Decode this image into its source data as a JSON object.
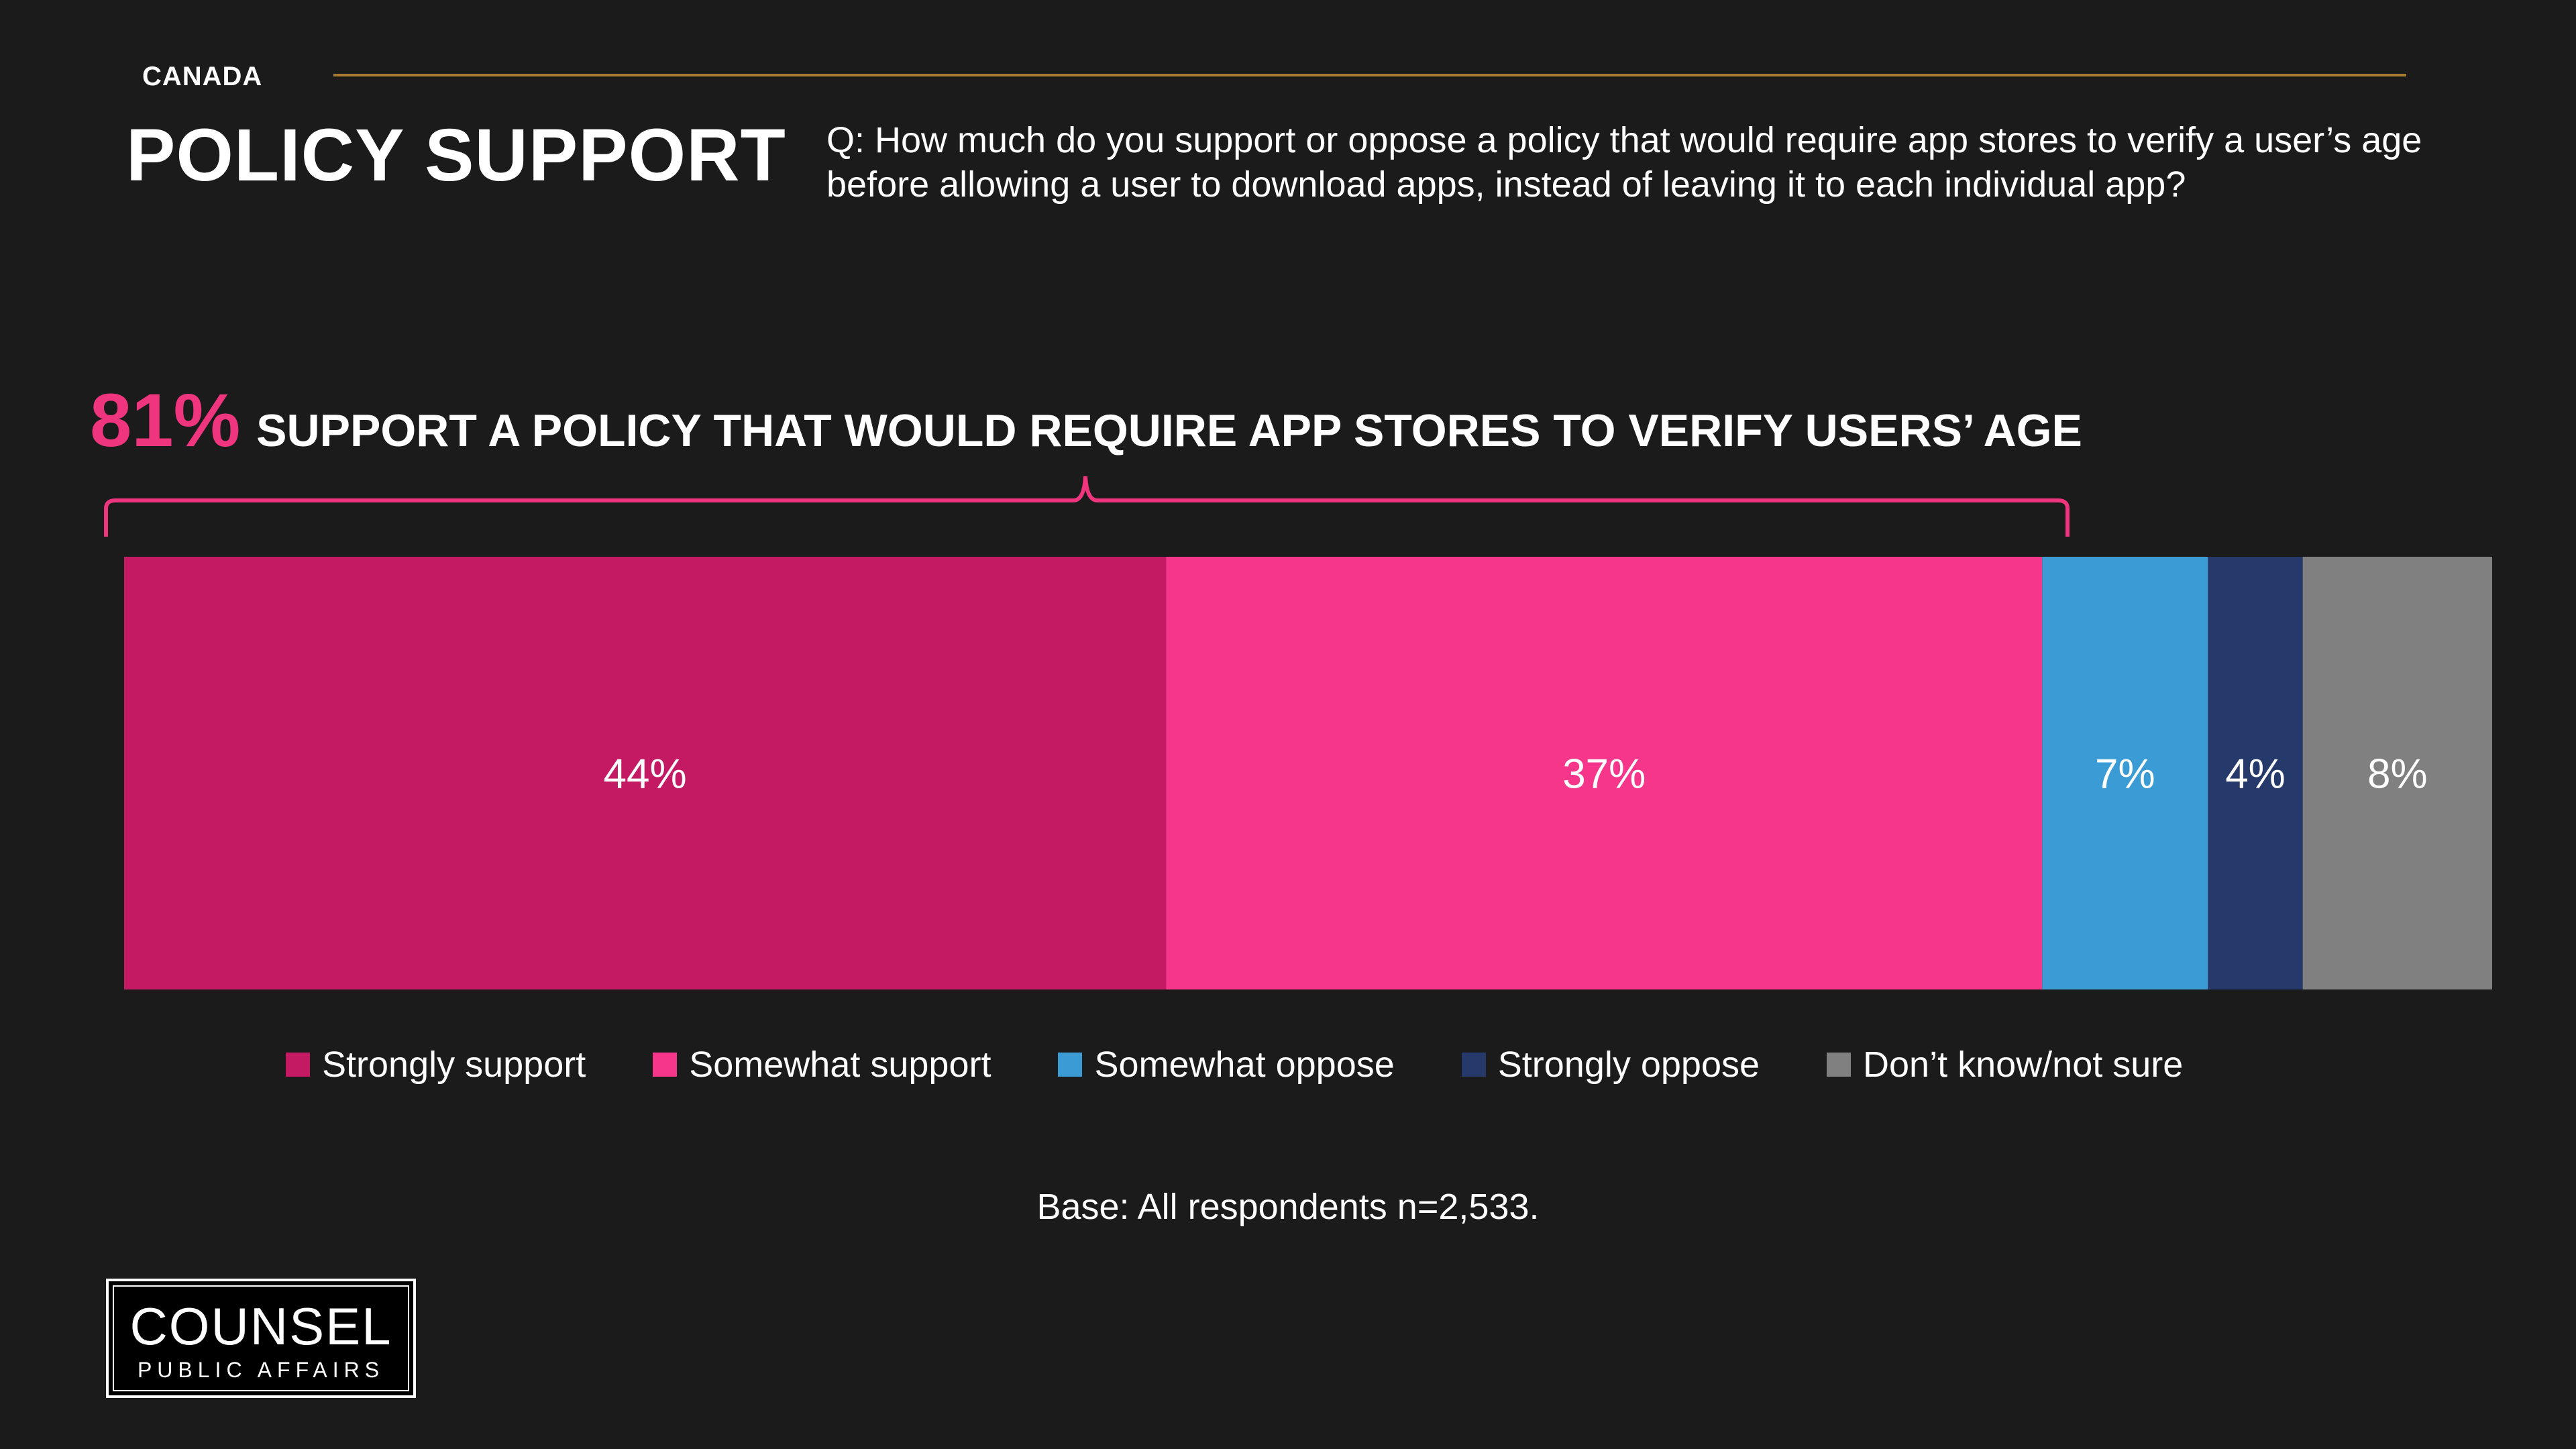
{
  "header": {
    "country": "CANADA",
    "title": "POLICY SUPPORT",
    "question": "Q: How much do you support or oppose a policy that would require app stores to verify a user’s age before allowing a user to download apps, instead of leaving it to each individual app?"
  },
  "headline": {
    "percent": "81%",
    "text": "SUPPORT A POLICY THAT WOULD REQUIRE APP STORES TO VERIFY USERS’ AGE"
  },
  "chart_data": {
    "type": "bar",
    "orientation": "horizontal-stacked-100",
    "categories": [
      "Canada"
    ],
    "series": [
      {
        "name": "Strongly support",
        "values": [
          44
        ],
        "label": "44%",
        "color": "#c41a63"
      },
      {
        "name": "Somewhat support",
        "values": [
          37
        ],
        "label": "37%",
        "color": "#f5368b"
      },
      {
        "name": "Somewhat oppose",
        "values": [
          7
        ],
        "label": "7%",
        "color": "#3a9bd5"
      },
      {
        "name": "Strongly oppose",
        "values": [
          4
        ],
        "label": "4%",
        "color": "#25396b"
      },
      {
        "name": "Don’t know/not sure",
        "values": [
          8
        ],
        "label": "8%",
        "color": "#808080"
      }
    ],
    "xlim": [
      0,
      100
    ],
    "legend_position": "bottom"
  },
  "base": "Base: All respondents n=2,533.",
  "logo": {
    "line1": "COUNSEL",
    "line2": "PUBLIC AFFAIRS"
  },
  "colors": {
    "background": "#1b1b1b",
    "accent": "#f0357f",
    "rule": "#a87a2c"
  }
}
